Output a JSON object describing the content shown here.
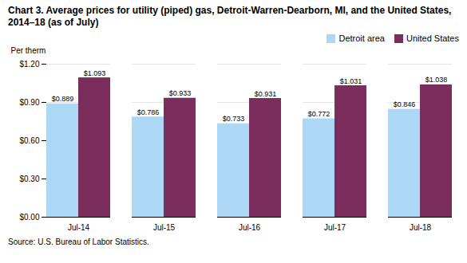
{
  "chart_data": {
    "type": "bar",
    "title": "Chart 3. Average prices for utility (piped) gas, Detroit-Warren-Dearborn, MI, and the United States, 2014–18 (as of July)",
    "ylabel": "Per therm",
    "source": "Source: U.S. Bureau of Labor Statistics.",
    "categories": [
      "Jul-14",
      "Jul-15",
      "Jul-16",
      "Jul-17",
      "Jul-18"
    ],
    "series": [
      {
        "name": "Detroit area",
        "color": "#add8f5",
        "values": [
          0.889,
          0.786,
          0.733,
          0.772,
          0.846
        ],
        "value_labels": [
          "$0.889",
          "$0.786",
          "$0.733",
          "$0.772",
          "$0.846"
        ]
      },
      {
        "name": "United States",
        "color": "#7b2d5e",
        "values": [
          1.093,
          0.933,
          0.931,
          1.031,
          1.038
        ],
        "value_labels": [
          "$1.093",
          "$0.933",
          "$0.931",
          "$1.031",
          "$1.038"
        ]
      }
    ],
    "ylim": [
      0.0,
      1.2
    ],
    "yticks": [
      {
        "value": 0.0,
        "label": "$0.00"
      },
      {
        "value": 0.3,
        "label": "$0.30"
      },
      {
        "value": 0.6,
        "label": "$0.60"
      },
      {
        "value": 0.9,
        "label": "$0.90"
      },
      {
        "value": 1.2,
        "label": "$1.20"
      }
    ],
    "grid": true,
    "legend": "upper right",
    "data_labels": true
  }
}
